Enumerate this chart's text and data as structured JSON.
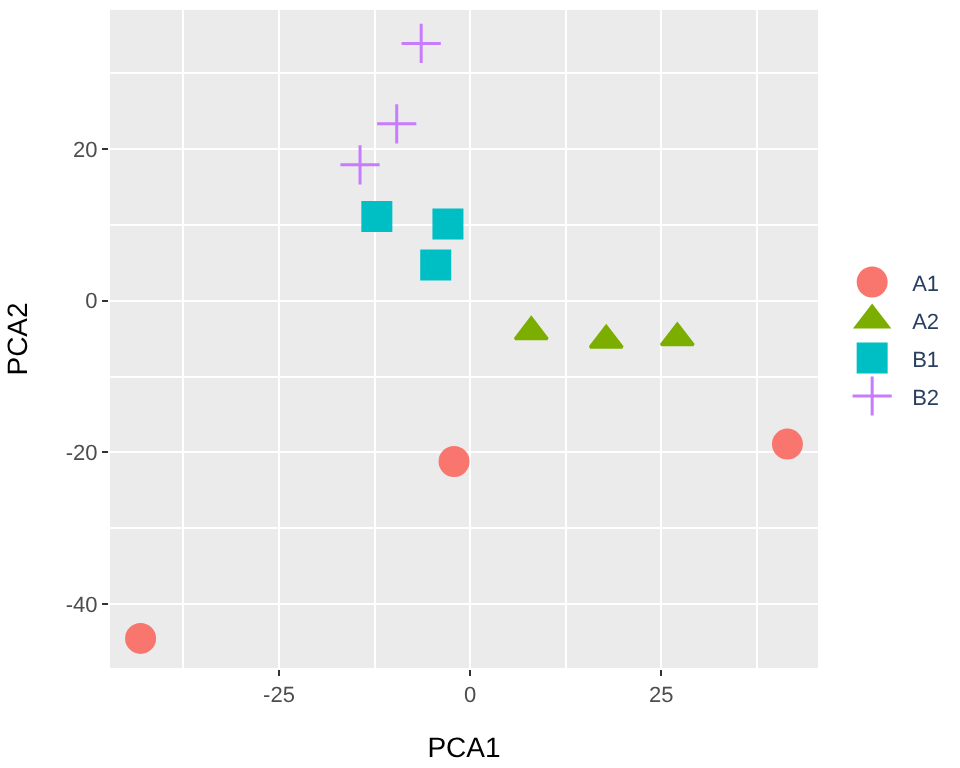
{
  "chart_data": {
    "type": "scatter",
    "xlabel": "PCA1",
    "ylabel": "PCA2",
    "xlim": [
      -47.1,
      45.5
    ],
    "ylim": [
      -48.4,
      38.3
    ],
    "xticks": [
      {
        "value": -37.5,
        "label": null
      },
      -25,
      {
        "value": -12.5,
        "label": null
      },
      0,
      {
        "value": 12.5,
        "label": null
      },
      25,
      {
        "value": 37.5,
        "label": null
      }
    ],
    "yticks": [
      {
        "value": -30,
        "label": null
      },
      -40,
      -20,
      {
        "value": -10,
        "label": null
      },
      0,
      {
        "value": 10,
        "label": null
      },
      20,
      {
        "value": 30,
        "label": null
      }
    ],
    "grid": true,
    "legend": "right",
    "series": [
      {
        "name": "A1",
        "color": "#f8766d",
        "marker": "circle",
        "x": [
          -43.1,
          -2.1,
          41.5
        ],
        "values": [
          -44.5,
          -21.2,
          -18.9
        ]
      },
      {
        "name": "A2",
        "color": "#7cae00",
        "marker": "triangle",
        "x": [
          8.0,
          17.8,
          27.1
        ],
        "values": [
          -4.1,
          -5.2,
          -4.9
        ]
      },
      {
        "name": "B1",
        "color": "#00bfc4",
        "marker": "square",
        "x": [
          -12.2,
          -2.9,
          -4.5
        ],
        "values": [
          11.1,
          10.1,
          4.7
        ]
      },
      {
        "name": "B2",
        "color": "#c77cff",
        "marker": "cross",
        "x": [
          -6.4,
          -9.6,
          -14.4
        ],
        "values": [
          33.9,
          23.3,
          17.9
        ]
      }
    ]
  }
}
